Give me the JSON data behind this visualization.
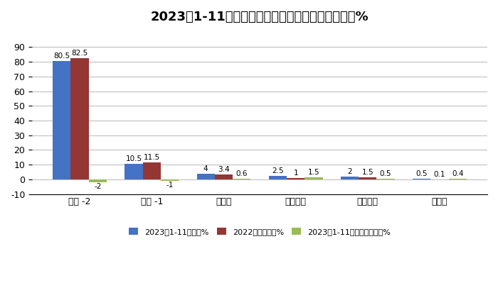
{
  "title": "2023年1-11月各类动力冷藏车占比及占比同比增减%",
  "x_labels": [
    "柴油 -2",
    "汽油 -1",
    "纯电动",
    "混合动力",
    "燃料电池",
    "燃气类"
  ],
  "series1_label": "2023年1-11月占比%",
  "series2_label": "2022年同期占比%",
  "series3_label": "2023年1-11月占比同比增减%",
  "series1_values": [
    80.5,
    10.5,
    4.0,
    2.5,
    2.0,
    0.5
  ],
  "series2_values": [
    82.5,
    11.5,
    3.4,
    1.0,
    1.5,
    0.1
  ],
  "series3_values": [
    -2.0,
    -1.0,
    0.6,
    1.5,
    0.5,
    0.4
  ],
  "series1_color": "#4472C4",
  "series2_color": "#943634",
  "series3_color": "#9BBB59",
  "bar_width": 0.25,
  "ylim": [
    -10,
    100
  ],
  "yticks": [
    -10,
    0,
    10,
    20,
    30,
    40,
    50,
    60,
    70,
    80,
    90
  ],
  "title_fontsize": 13,
  "bg_color": "#FFFFFF",
  "grid_color": "#C0C0C0",
  "value_labels_s1": [
    "80.5",
    "10.5",
    "4",
    "2.5",
    "2",
    "0.5"
  ],
  "value_labels_s2": [
    "82.5",
    "11.5",
    "3.4",
    "1",
    "1.5",
    "0.1"
  ],
  "value_labels_s3": [
    "-2",
    "-1",
    "0.6",
    "1.5",
    "0.5",
    "0.4"
  ]
}
